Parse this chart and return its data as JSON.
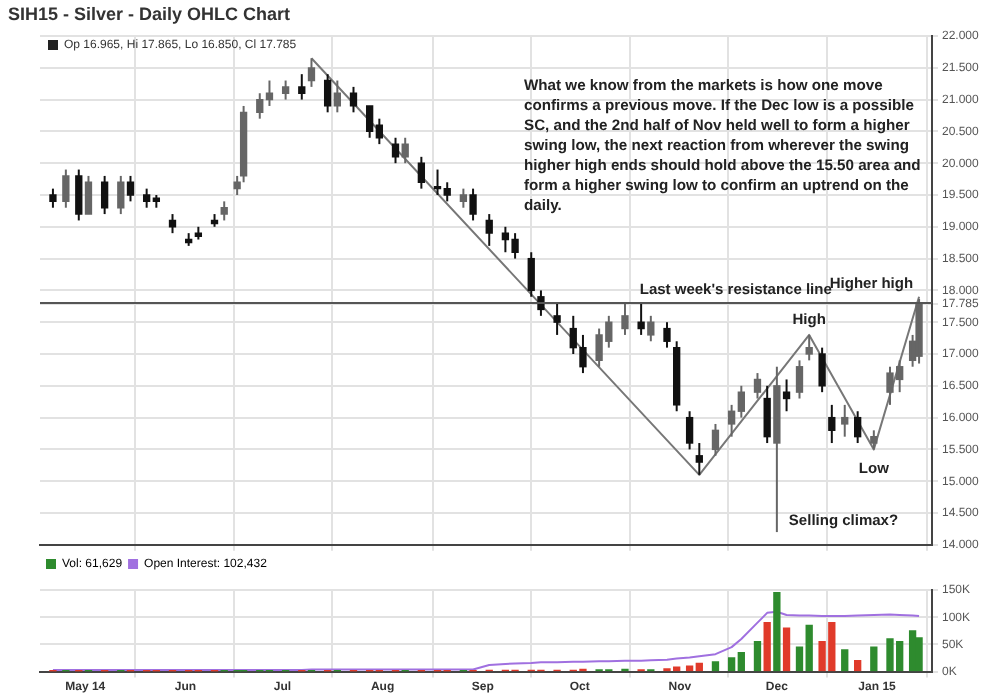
{
  "chart_data": [
    {
      "type": "candlestick",
      "title": "SIH15 - Silver - Daily OHLC Chart",
      "subtitle": "Op 16.965, Hi 17.865, Lo 16.850, Cl 17.785",
      "colors": [
        "#111111",
        "#666666",
        "#111111",
        "#666666",
        "#111111",
        "#666666",
        "#111111",
        "#111111",
        "#111111",
        "#111111",
        "#111111",
        "#111111",
        "#111111",
        "#666666",
        "#666666",
        "#666666",
        "#666666",
        "#666666",
        "#666666",
        "#111111",
        "#666666",
        "#111111",
        "#666666",
        "#111111",
        "#111111",
        "#111111",
        "#111111",
        "#666666",
        "#111111",
        "#111111",
        "#111111",
        "#666666",
        "#111111",
        "#111111",
        "#111111",
        "#111111",
        "#111111",
        "#111111",
        "#111111",
        "#111111",
        "#111111",
        "#666666",
        "#666666",
        "#666666",
        "#111111",
        "#666666",
        "#111111",
        "#111111",
        "#111111",
        "#111111",
        "#666666",
        "#666666",
        "#666666",
        "#666666",
        "#111111",
        "#666666",
        "#111111",
        "#666666",
        "#666666",
        "#111111",
        "#111111",
        "#666666",
        "#111111",
        "#666666",
        "#666666",
        "#666666",
        "#666666",
        "#666666"
      ],
      "x": [
        "2014-04-21",
        "2014-04-25",
        "2014-04-29",
        "2014-05-02",
        "2014-05-07",
        "2014-05-12",
        "2014-05-15",
        "2014-05-20",
        "2014-05-23",
        "2014-05-28",
        "2014-06-02",
        "2014-06-05",
        "2014-06-10",
        "2014-06-13",
        "2014-06-17",
        "2014-06-19",
        "2014-06-24",
        "2014-06-27",
        "2014-07-02",
        "2014-07-07",
        "2014-07-10",
        "2014-07-15",
        "2014-07-18",
        "2014-07-23",
        "2014-07-28",
        "2014-07-31",
        "2014-08-05",
        "2014-08-08",
        "2014-08-13",
        "2014-08-18",
        "2014-08-21",
        "2014-08-26",
        "2014-08-29",
        "2014-09-03",
        "2014-09-08",
        "2014-09-11",
        "2014-09-16",
        "2014-09-19",
        "2014-09-24",
        "2014-09-29",
        "2014-10-02",
        "2014-10-07",
        "2014-10-10",
        "2014-10-15",
        "2014-10-20",
        "2014-10-23",
        "2014-10-28",
        "2014-10-31",
        "2014-11-04",
        "2014-11-07",
        "2014-11-12",
        "2014-11-17",
        "2014-11-20",
        "2014-11-25",
        "2014-11-28",
        "2014-12-01",
        "2014-12-04",
        "2014-12-08",
        "2014-12-11",
        "2014-12-15",
        "2014-12-18",
        "2014-12-22",
        "2014-12-26",
        "2014-12-31",
        "2015-01-05",
        "2015-01-08",
        "2015-01-12",
        "2015-01-14"
      ],
      "ohlc": [
        [
          19.5,
          19.6,
          19.3,
          19.4
        ],
        [
          19.4,
          19.9,
          19.3,
          19.8
        ],
        [
          19.8,
          19.9,
          19.1,
          19.2
        ],
        [
          19.2,
          19.8,
          19.2,
          19.7
        ],
        [
          19.7,
          19.8,
          19.2,
          19.3
        ],
        [
          19.3,
          19.8,
          19.2,
          19.7
        ],
        [
          19.7,
          19.8,
          19.4,
          19.5
        ],
        [
          19.5,
          19.6,
          19.3,
          19.4
        ],
        [
          19.45,
          19.5,
          19.3,
          19.4
        ],
        [
          19.1,
          19.2,
          18.9,
          19.0
        ],
        [
          18.8,
          18.9,
          18.7,
          18.75
        ],
        [
          18.9,
          19.0,
          18.8,
          18.85
        ],
        [
          19.1,
          19.2,
          19.0,
          19.05
        ],
        [
          19.2,
          19.4,
          19.1,
          19.3
        ],
        [
          19.6,
          19.8,
          19.5,
          19.7
        ],
        [
          19.8,
          20.9,
          19.7,
          20.8
        ],
        [
          20.8,
          21.1,
          20.7,
          21.0
        ],
        [
          21.0,
          21.3,
          20.9,
          21.1
        ],
        [
          21.1,
          21.3,
          21.0,
          21.2
        ],
        [
          21.2,
          21.4,
          21.0,
          21.1
        ],
        [
          21.3,
          21.65,
          21.2,
          21.5
        ],
        [
          21.3,
          21.4,
          20.8,
          20.9
        ],
        [
          20.9,
          21.3,
          20.8,
          21.1
        ],
        [
          21.1,
          21.2,
          20.8,
          20.9
        ],
        [
          20.9,
          20.9,
          20.4,
          20.5
        ],
        [
          20.6,
          20.7,
          20.3,
          20.4
        ],
        [
          20.3,
          20.4,
          20.0,
          20.1
        ],
        [
          20.1,
          20.4,
          20.0,
          20.3
        ],
        [
          20.0,
          20.1,
          19.6,
          19.7
        ],
        [
          19.6,
          19.9,
          19.5,
          19.6
        ],
        [
          19.6,
          19.7,
          19.4,
          19.5
        ],
        [
          19.4,
          19.6,
          19.3,
          19.5
        ],
        [
          19.5,
          19.6,
          19.1,
          19.2
        ],
        [
          19.1,
          19.2,
          18.7,
          18.9
        ],
        [
          18.9,
          19.0,
          18.6,
          18.8
        ],
        [
          18.8,
          18.9,
          18.5,
          18.6
        ],
        [
          18.5,
          18.6,
          17.9,
          18.0
        ],
        [
          17.9,
          18.0,
          17.6,
          17.7
        ],
        [
          17.6,
          17.8,
          17.3,
          17.5
        ],
        [
          17.4,
          17.6,
          17.0,
          17.1
        ],
        [
          17.1,
          17.3,
          16.7,
          16.8
        ],
        [
          16.9,
          17.4,
          16.8,
          17.3
        ],
        [
          17.2,
          17.6,
          17.1,
          17.5
        ],
        [
          17.4,
          17.8,
          17.3,
          17.6
        ],
        [
          17.5,
          17.8,
          17.3,
          17.4
        ],
        [
          17.3,
          17.6,
          17.2,
          17.5
        ],
        [
          17.4,
          17.5,
          17.1,
          17.2
        ],
        [
          17.1,
          17.2,
          16.1,
          16.2
        ],
        [
          16.0,
          16.1,
          15.5,
          15.6
        ],
        [
          15.4,
          15.6,
          15.1,
          15.3
        ],
        [
          15.5,
          15.9,
          15.4,
          15.8
        ],
        [
          15.9,
          16.2,
          15.7,
          16.1
        ],
        [
          16.1,
          16.5,
          16.0,
          16.4
        ],
        [
          16.4,
          16.7,
          16.3,
          16.6
        ],
        [
          16.3,
          16.5,
          15.6,
          15.7
        ],
        [
          15.6,
          16.8,
          14.2,
          16.5
        ],
        [
          16.4,
          16.6,
          16.1,
          16.3
        ],
        [
          16.4,
          16.9,
          16.3,
          16.8
        ],
        [
          17.0,
          17.3,
          16.9,
          17.1
        ],
        [
          17.0,
          17.1,
          16.4,
          16.5
        ],
        [
          16.0,
          16.2,
          15.6,
          15.8
        ],
        [
          15.9,
          16.2,
          15.7,
          16.0
        ],
        [
          16.0,
          16.1,
          15.6,
          15.7
        ],
        [
          15.6,
          15.8,
          15.5,
          15.7
        ],
        [
          16.4,
          16.8,
          16.2,
          16.7
        ],
        [
          16.6,
          16.9,
          16.4,
          16.8
        ],
        [
          16.9,
          17.3,
          16.8,
          17.2
        ],
        [
          16.965,
          17.865,
          16.85,
          17.785
        ]
      ],
      "series": [
        {
          "type": "line",
          "color": "#777777",
          "x": [
            "2014-07-10",
            "2014-11-07",
            "2014-12-11",
            "2014-12-31",
            "2015-01-14"
          ],
          "values": [
            21.65,
            15.1,
            17.3,
            15.5,
            17.9
          ]
        }
      ],
      "xlim": [
        "2014-04-17",
        "2015-01-18"
      ],
      "xticks": [
        {
          "value": "2014-05-01",
          "label": null
        },
        {
          "value": "2014-06-01",
          "label": null
        },
        {
          "value": "2014-07-01",
          "label": null
        },
        {
          "value": "2014-08-01",
          "label": null
        },
        {
          "value": "2014-09-01",
          "label": null
        },
        {
          "value": "2014-10-01",
          "label": null
        },
        {
          "value": "2014-11-01",
          "label": null
        },
        {
          "value": "2014-12-01",
          "label": null
        },
        {
          "value": "2015-01-01",
          "label": null
        }
      ],
      "ylim": [
        14,
        22
      ],
      "yticks": [
        {
          "value": 14,
          "label": "14.000"
        },
        {
          "value": 14.5,
          "label": "14.500"
        },
        {
          "value": 15,
          "label": "15.000"
        },
        {
          "value": 15.5,
          "label": "15.500"
        },
        {
          "value": 16,
          "label": "16.000"
        },
        {
          "value": 16.5,
          "label": "16.500"
        },
        {
          "value": 17,
          "label": "17.000"
        },
        {
          "value": 17.5,
          "label": "17.500"
        },
        {
          "value": 17.785,
          "label": "17.785"
        },
        {
          "value": 18,
          "label": "18.000"
        },
        {
          "value": 18.5,
          "label": "18.500"
        },
        {
          "value": 19,
          "label": "19.000"
        },
        {
          "value": 19.5,
          "label": "19.500"
        },
        {
          "value": 20,
          "label": "20.000"
        },
        {
          "value": 20.5,
          "label": "20.500"
        },
        {
          "value": 21,
          "label": "21.000"
        },
        {
          "value": 21.5,
          "label": "21.500"
        },
        {
          "value": 22,
          "label": "22.000"
        }
      ],
      "tick_labels": "y",
      "grid": true,
      "legend": false,
      "ref_lines": [
        {
          "axis": "y",
          "value": 17.8,
          "label": "Last week's resistance line",
          "color": "#555555"
        }
      ],
      "annotations": [
        "What we know from the markets is how one move confirms a previous move.  If the Dec low is a possible SC, and the 2nd half of Nov held well to form a higher swing low, the next reaction from wherever the swing higher high ends should hold above the 15.50 area and form a higher swing low to confirm an uptrend on the daily.",
        {
          "text": "High",
          "x": "2014-12-11",
          "y": 17.3
        },
        {
          "text": "Low",
          "x": "2014-12-31",
          "y": 15.5
        },
        {
          "text": "Higher high",
          "x": "2015-01-14",
          "y": 17.865
        },
        {
          "text": "Selling climax?",
          "x": "2014-12-01",
          "y": 14.2
        }
      ]
    },
    {
      "type": "bar",
      "legend": "top left",
      "grid": true,
      "x": [
        "2014-04-21",
        "2014-04-25",
        "2014-04-29",
        "2014-05-02",
        "2014-05-07",
        "2014-05-12",
        "2014-05-15",
        "2014-05-20",
        "2014-05-23",
        "2014-05-28",
        "2014-06-02",
        "2014-06-05",
        "2014-06-10",
        "2014-06-13",
        "2014-06-17",
        "2014-06-19",
        "2014-06-24",
        "2014-06-27",
        "2014-07-02",
        "2014-07-07",
        "2014-07-10",
        "2014-07-15",
        "2014-07-18",
        "2014-07-23",
        "2014-07-28",
        "2014-07-31",
        "2014-08-05",
        "2014-08-08",
        "2014-08-13",
        "2014-08-18",
        "2014-08-21",
        "2014-08-26",
        "2014-08-29",
        "2014-09-03",
        "2014-09-08",
        "2014-09-11",
        "2014-09-16",
        "2014-09-19",
        "2014-09-24",
        "2014-09-29",
        "2014-10-02",
        "2014-10-07",
        "2014-10-10",
        "2014-10-15",
        "2014-10-20",
        "2014-10-23",
        "2014-10-28",
        "2014-10-31",
        "2014-11-04",
        "2014-11-07",
        "2014-11-12",
        "2014-11-17",
        "2014-11-20",
        "2014-11-25",
        "2014-11-28",
        "2014-12-01",
        "2014-12-04",
        "2014-12-08",
        "2014-12-11",
        "2014-12-15",
        "2014-12-18",
        "2014-12-22",
        "2014-12-26",
        "2014-12-31",
        "2015-01-05",
        "2015-01-08",
        "2015-01-12",
        "2015-01-14"
      ],
      "series": [
        {
          "name": "Vol: 61,629",
          "type": "bar",
          "color": "#2e8b2e",
          "colors": [
            "#e03a2a",
            "#2e8b2e",
            "#e03a2a",
            "#2e8b2e",
            "#e03a2a",
            "#2e8b2e",
            "#e03a2a",
            "#e03a2a",
            "#e03a2a",
            "#e03a2a",
            "#e03a2a",
            "#e03a2a",
            "#e03a2a",
            "#2e8b2e",
            "#2e8b2e",
            "#2e8b2e",
            "#2e8b2e",
            "#2e8b2e",
            "#2e8b2e",
            "#e03a2a",
            "#2e8b2e",
            "#e03a2a",
            "#2e8b2e",
            "#e03a2a",
            "#e03a2a",
            "#e03a2a",
            "#e03a2a",
            "#2e8b2e",
            "#e03a2a",
            "#e03a2a",
            "#e03a2a",
            "#2e8b2e",
            "#e03a2a",
            "#e03a2a",
            "#e03a2a",
            "#e03a2a",
            "#e03a2a",
            "#e03a2a",
            "#e03a2a",
            "#e03a2a",
            "#e03a2a",
            "#2e8b2e",
            "#2e8b2e",
            "#2e8b2e",
            "#e03a2a",
            "#2e8b2e",
            "#e03a2a",
            "#e03a2a",
            "#e03a2a",
            "#e03a2a",
            "#2e8b2e",
            "#2e8b2e",
            "#2e8b2e",
            "#2e8b2e",
            "#e03a2a",
            "#2e8b2e",
            "#e03a2a",
            "#2e8b2e",
            "#2e8b2e",
            "#e03a2a",
            "#e03a2a",
            "#2e8b2e",
            "#e03a2a",
            "#2e8b2e",
            "#2e8b2e",
            "#2e8b2e",
            "#2e8b2e",
            "#2e8b2e"
          ],
          "values": [
            1000,
            1000,
            1000,
            1000,
            1000,
            1000,
            1000,
            1000,
            1000,
            1000,
            1000,
            1000,
            1000,
            1000,
            1000,
            1000,
            1000,
            1000,
            1000,
            1000,
            1000,
            1000,
            1000,
            1000,
            1000,
            1000,
            1000,
            1000,
            1000,
            1000,
            1000,
            1000,
            1000,
            2000,
            2000,
            2000,
            2000,
            2000,
            2000,
            2000,
            4000,
            3000,
            3000,
            4000,
            3000,
            3000,
            5000,
            8000,
            10000,
            15000,
            18000,
            25000,
            35000,
            55000,
            90000,
            145000,
            80000,
            45000,
            85000,
            55000,
            90000,
            40000,
            20000,
            45000,
            60000,
            55000,
            75000,
            62000
          ]
        },
        {
          "name": "Open Interest: 102,432",
          "type": "line",
          "color": "#a070e0",
          "values": [
            3000,
            3000,
            3000,
            3000,
            3000,
            3000,
            3000,
            3000,
            3000,
            3000,
            3000,
            3000,
            3000,
            3000,
            3000,
            3000,
            3000,
            3000,
            3000,
            3000,
            4000,
            4000,
            4000,
            4000,
            4000,
            4000,
            4000,
            4000,
            4000,
            4000,
            4000,
            4000,
            4000,
            12000,
            14000,
            15000,
            16000,
            17000,
            17000,
            18000,
            18000,
            19000,
            19000,
            20000,
            20000,
            21000,
            22000,
            24000,
            26000,
            28000,
            32000,
            45000,
            60000,
            90000,
            108000,
            110000,
            104000,
            103000,
            103000,
            102000,
            102000,
            102000,
            103000,
            104000,
            105000,
            104000,
            103000,
            102000
          ]
        }
      ],
      "xlim": [
        "2014-04-17",
        "2015-01-18"
      ],
      "xticks": [
        {
          "value": "2014-05-01",
          "label": "May 14"
        },
        {
          "value": "2014-06-01",
          "label": "Jun"
        },
        {
          "value": "2014-07-01",
          "label": "Jul"
        },
        {
          "value": "2014-08-01",
          "label": "Aug"
        },
        {
          "value": "2014-09-01",
          "label": "Sep"
        },
        {
          "value": "2014-10-01",
          "label": "Oct"
        },
        {
          "value": "2014-11-01",
          "label": "Nov"
        },
        {
          "value": "2014-12-01",
          "label": "Dec"
        },
        {
          "value": "2015-01-01",
          "label": "Jan 15"
        }
      ],
      "ylim": [
        0,
        150000
      ],
      "yticks": [
        {
          "value": 0,
          "label": "0K"
        },
        {
          "value": 50000,
          "label": "50K"
        },
        {
          "value": 100000,
          "label": "100K"
        },
        {
          "value": 150000,
          "label": "150K"
        }
      ]
    }
  ]
}
